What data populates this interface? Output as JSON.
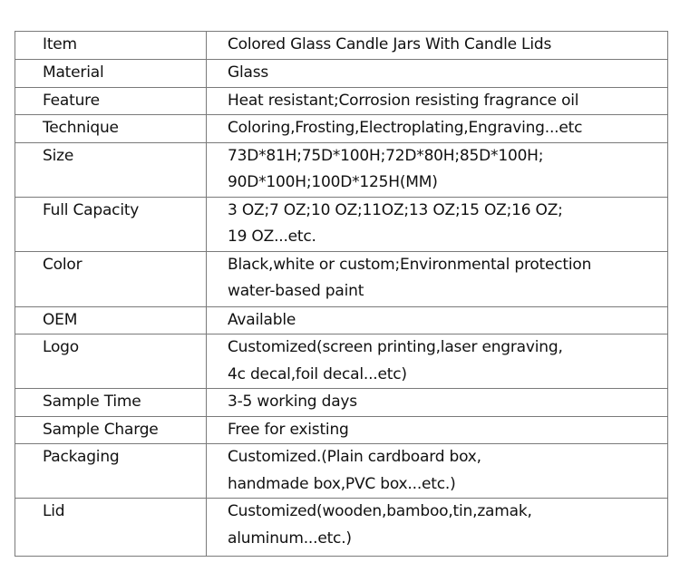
{
  "rows": [
    {
      "label": "Item",
      "lines": [
        "Colored Glass Candle Jars With Candle Lids"
      ]
    },
    {
      "label": "Material",
      "lines": [
        "Glass"
      ]
    },
    {
      "label": "Feature",
      "lines": [
        "Heat resistant;Corrosion resisting fragrance oil"
      ]
    },
    {
      "label": "Technique",
      "lines": [
        "Coloring,Frosting,Electroplating,Engraving...etc"
      ]
    },
    {
      "label": "Size",
      "lines": [
        "73D*81H;75D*100H;72D*80H;85D*100H;",
        "90D*100H;100D*125H(MM)"
      ]
    },
    {
      "label": "Full Capacity",
      "lines": [
        "3 OZ;7 OZ;10 OZ;11OZ;13 OZ;15 OZ;16 OZ;",
        "19 OZ...etc."
      ]
    },
    {
      "label": "Color",
      "lines": [
        "Black,white or custom;Environmental protection",
        "water-based paint"
      ]
    },
    {
      "label": "OEM",
      "lines": [
        "Available"
      ]
    },
    {
      "label": "Logo",
      "lines": [
        "Customized(screen printing,laser engraving,",
        "4c decal,foil decal...etc)"
      ]
    },
    {
      "label": "Sample Time",
      "lines": [
        "3-5 working days"
      ]
    },
    {
      "label": "Sample Charge",
      "lines": [
        "Free for existing"
      ]
    },
    {
      "label": "Packaging",
      "lines": [
        "Customized.(Plain cardboard box,",
        "handmade box,PVC box...etc.)"
      ]
    },
    {
      "label": "Lid",
      "lines": [
        "Customized(wooden,bamboo,tin,zamak,",
        "aluminum...etc.)"
      ]
    }
  ]
}
